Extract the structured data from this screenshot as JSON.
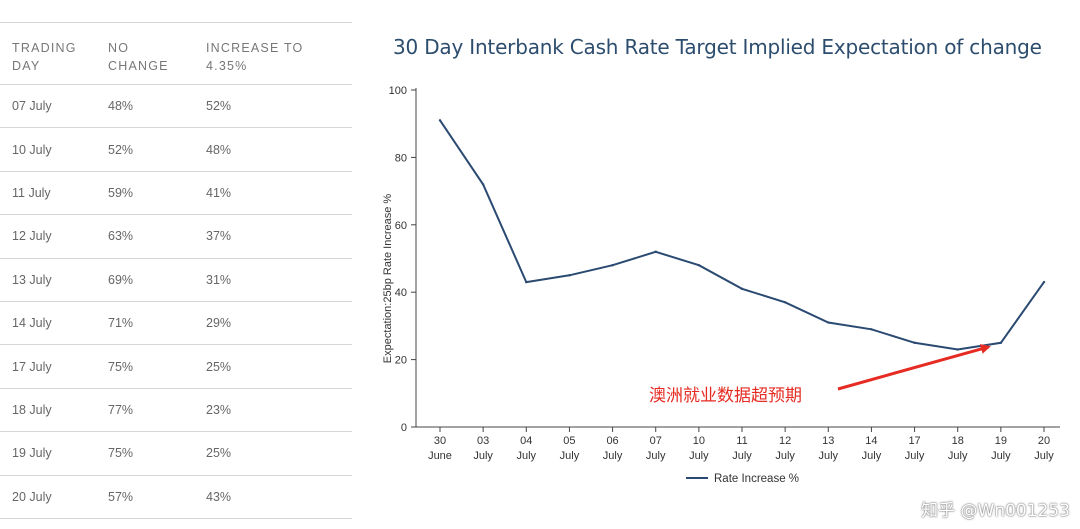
{
  "table": {
    "headers": [
      {
        "line1": "TRADING",
        "line2": "DAY"
      },
      {
        "line1": "NO",
        "line2": "CHANGE"
      },
      {
        "line1": "INCREASE TO",
        "line2": "4.35%"
      }
    ],
    "rows": [
      [
        "07 July",
        "48%",
        "52%"
      ],
      [
        "10 July",
        "52%",
        "48%"
      ],
      [
        "11 July",
        "59%",
        "41%"
      ],
      [
        "12 July",
        "63%",
        "37%"
      ],
      [
        "13 July",
        "69%",
        "31%"
      ],
      [
        "14 July",
        "71%",
        "29%"
      ],
      [
        "17 July",
        "75%",
        "25%"
      ],
      [
        "18 July",
        "77%",
        "23%"
      ],
      [
        "19 July",
        "75%",
        "25%"
      ],
      [
        "20 July",
        "57%",
        "43%"
      ]
    ]
  },
  "chart_data": {
    "type": "line",
    "title": "30 Day Interbank Cash Rate Target Implied Expectation of change",
    "ylabel": "Expectation:25bp Rate Increase %",
    "xlabel": "",
    "ylim": [
      0,
      100
    ],
    "yticks": [
      0,
      20,
      40,
      60,
      80,
      100
    ],
    "grid": false,
    "legend_position": "bottom-center",
    "categories": [
      {
        "top": "30",
        "bottom": "June"
      },
      {
        "top": "03",
        "bottom": "July"
      },
      {
        "top": "04",
        "bottom": "July"
      },
      {
        "top": "05",
        "bottom": "July"
      },
      {
        "top": "06",
        "bottom": "July"
      },
      {
        "top": "07",
        "bottom": "July"
      },
      {
        "top": "10",
        "bottom": "July"
      },
      {
        "top": "11",
        "bottom": "July"
      },
      {
        "top": "12",
        "bottom": "July"
      },
      {
        "top": "13",
        "bottom": "July"
      },
      {
        "top": "14",
        "bottom": "July"
      },
      {
        "top": "17",
        "bottom": "July"
      },
      {
        "top": "18",
        "bottom": "July"
      },
      {
        "top": "19",
        "bottom": "July"
      },
      {
        "top": "20",
        "bottom": "July"
      }
    ],
    "series": [
      {
        "name": "Rate Increase %",
        "color": "#2b4a72",
        "values": [
          91,
          72,
          43,
          45,
          48,
          52,
          48,
          41,
          37,
          31,
          29,
          25,
          23,
          25,
          43
        ]
      }
    ],
    "annotation": {
      "text": "澳洲就业数据超预期",
      "color": "#e52b22",
      "points_to_index": 13
    }
  },
  "watermark": "知乎 @Wn001253"
}
